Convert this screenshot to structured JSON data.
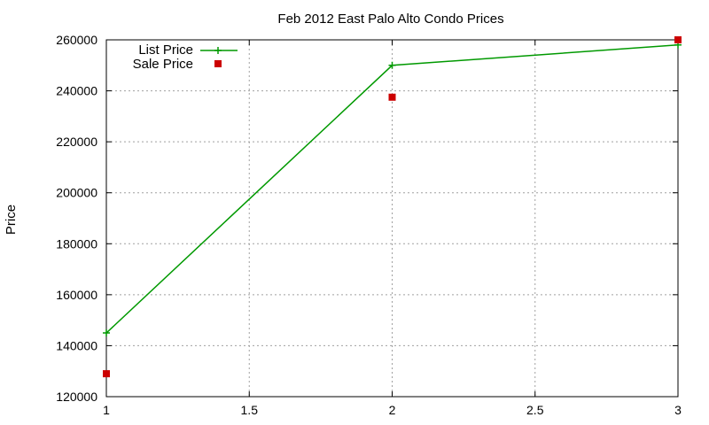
{
  "chart_data": {
    "type": "line",
    "title": "Feb 2012 East Palo Alto Condo Prices",
    "ylabel": "Price",
    "xlabel": "",
    "xlim": [
      1,
      3
    ],
    "ylim": [
      120000,
      260000
    ],
    "x_ticks": [
      "1",
      "1.5",
      "2",
      "2.5",
      "3"
    ],
    "x_tick_values": [
      1,
      1.5,
      2,
      2.5,
      3
    ],
    "y_ticks": [
      "120000",
      "140000",
      "160000",
      "180000",
      "200000",
      "220000",
      "240000",
      "260000"
    ],
    "y_tick_values": [
      120000,
      140000,
      160000,
      180000,
      200000,
      220000,
      240000,
      260000
    ],
    "grid": true,
    "legend_position": "top-left",
    "series": [
      {
        "name": "List Price",
        "style": "line-with-plus-markers",
        "color": "#009900",
        "x": [
          1,
          2,
          3
        ],
        "y": [
          145000,
          250000,
          258000
        ]
      },
      {
        "name": "Sale Price",
        "style": "square-markers",
        "color": "#cc0000",
        "x": [
          1,
          2,
          3
        ],
        "y": [
          129000,
          237500,
          260000
        ]
      }
    ]
  }
}
